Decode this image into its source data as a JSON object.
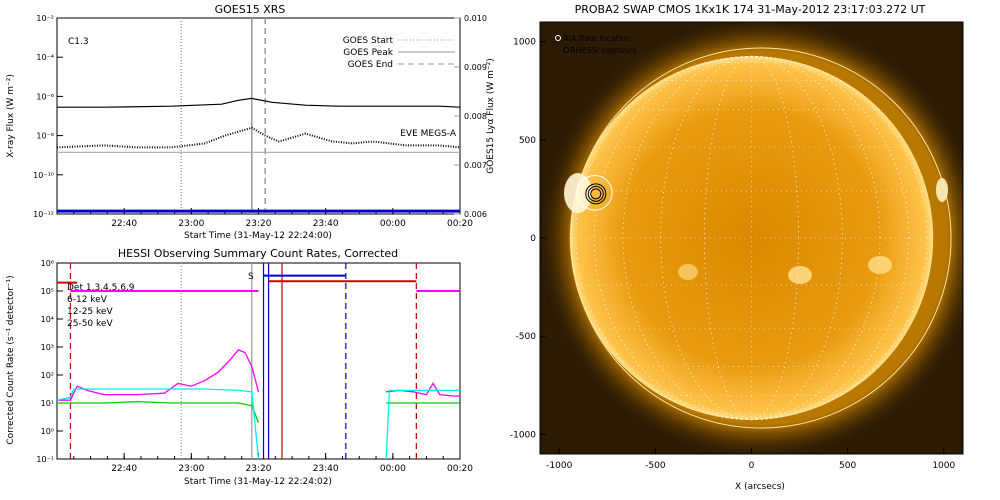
{
  "chart_data": [
    {
      "type": "line",
      "title": "GOES15 XRS",
      "xlabel": "Start Time (31-May-12 22:24:00)",
      "ylabel": "X-ray Flux (W m⁻²)",
      "ylabel_right": "GOES15 Lyα Flux (W m⁻²)",
      "x_ticks": [
        "22:40",
        "23:00",
        "23:20",
        "23:40",
        "00:00",
        "00:20"
      ],
      "x_range_min": [
        -4,
        116
      ],
      "x_tick_min": [
        16,
        36,
        56,
        76,
        96,
        116
      ],
      "y_scale": "log",
      "ylim": [
        1e-12,
        0.01
      ],
      "y_ticks": [
        "10⁻¹²",
        "10⁻¹⁰",
        "10⁻⁸",
        "10⁻⁶",
        "10⁻⁴",
        "10⁻²"
      ],
      "y_tick_exp": [
        -12,
        -10,
        -8,
        -6,
        -4,
        -2
      ],
      "right_ylim": [
        0.006,
        0.01
      ],
      "right_ticks": [
        "0.006",
        "0.007",
        "0.008",
        "0.009",
        "0.010"
      ],
      "right_tick_vals": [
        0.006,
        0.007,
        0.008,
        0.009,
        0.01
      ],
      "class_label": "C1.3",
      "legend": [
        "GOES Start",
        "GOES Peak",
        "GOES End"
      ],
      "eve_label": "EVE MEGS-A",
      "vlines": {
        "start": 33,
        "peak": 54,
        "end": 58
      },
      "series": [
        {
          "name": "long",
          "color": "#000000",
          "x": [
            -4,
            10,
            30,
            45,
            50,
            54,
            60,
            70,
            80,
            90,
            100,
            110,
            116
          ],
          "y_exp": [
            -6.55,
            -6.55,
            -6.5,
            -6.4,
            -6.2,
            -6.1,
            -6.3,
            -6.45,
            -6.5,
            -6.5,
            -6.5,
            -6.5,
            -6.55
          ]
        },
        {
          "name": "short",
          "color": "#000000",
          "x": [
            -4,
            10,
            20,
            30,
            40,
            46,
            50,
            54,
            58,
            62,
            66,
            70,
            74,
            78,
            84,
            90,
            100,
            110,
            116
          ],
          "y_exp": [
            -8.6,
            -8.5,
            -8.6,
            -8.6,
            -8.4,
            -8.0,
            -7.8,
            -7.6,
            -8.0,
            -8.3,
            -8.1,
            -7.9,
            -8.1,
            -8.3,
            -8.4,
            -8.3,
            -8.5,
            -8.5,
            -8.6
          ]
        },
        {
          "name": "lya",
          "color": "#aaaaaa",
          "x": [
            -4,
            116
          ],
          "y_exp": [
            -8.85,
            -8.85
          ]
        },
        {
          "name": "eve",
          "color": "#0000cc",
          "x": [
            -4,
            116
          ],
          "y_exp": [
            -11.85,
            -11.85
          ]
        }
      ]
    },
    {
      "type": "line",
      "title": "HESSI Observing Summary Count Rates, Corrected",
      "xlabel": "Start Time (31-May-12 22:24:02)",
      "ylabel": "Corrected Count Rate (s⁻¹ detector⁻¹)",
      "x_ticks": [
        "22:40",
        "23:00",
        "23:20",
        "23:40",
        "00:00",
        "00:20"
      ],
      "x_range_min": [
        -4,
        116
      ],
      "x_tick_min": [
        16,
        36,
        56,
        76,
        96,
        116
      ],
      "y_scale": "log",
      "ylim": [
        0.1,
        1000000
      ],
      "y_ticks": [
        "10⁻¹",
        "10⁰",
        "10¹",
        "10²",
        "10³",
        "10⁴",
        "10⁵",
        "10⁶"
      ],
      "y_tick_exp": [
        -1,
        0,
        1,
        2,
        3,
        4,
        5,
        6
      ],
      "legend": [
        {
          "label": "Det 1,3,4,5,6,9",
          "color": "#000000"
        },
        {
          "label": "6-12 keV",
          "color": "#ff00ff"
        },
        {
          "label": "12-25 keV",
          "color": "#00cc00"
        },
        {
          "label": "25-50 keV",
          "color": "#00eeee"
        }
      ],
      "s_label": "S",
      "vlines": [
        {
          "x": 0,
          "color": "#cc0000",
          "style": "dash"
        },
        {
          "x": 33,
          "color": "#999999",
          "style": "dot"
        },
        {
          "x": 54,
          "color": "#999999",
          "style": "solid"
        },
        {
          "x": 57.5,
          "color": "#0000cc",
          "style": "solid"
        },
        {
          "x": 59,
          "color": "#0000cc",
          "style": "solid"
        },
        {
          "x": 63,
          "color": "#cc0000",
          "style": "solid"
        },
        {
          "x": 82,
          "color": "#0000cc",
          "style": "dash"
        },
        {
          "x": 103,
          "color": "#cc0000",
          "style": "dash"
        }
      ],
      "series": [
        {
          "name": "6-12 keV",
          "color": "#ff00ff",
          "x": [
            -4,
            0,
            2,
            5,
            10,
            20,
            28,
            32,
            36,
            40,
            44,
            48,
            50,
            52,
            54,
            56
          ],
          "y_exp": [
            1.1,
            1.1,
            1.6,
            1.45,
            1.3,
            1.3,
            1.35,
            1.7,
            1.6,
            1.8,
            2.1,
            2.6,
            2.9,
            2.8,
            2.3,
            1.4
          ]
        },
        {
          "name": "6-12 keV late",
          "color": "#ff00ff",
          "x": [
            94,
            98,
            102,
            106,
            108,
            110,
            114,
            116
          ],
          "y_exp": [
            1.4,
            1.45,
            1.4,
            1.3,
            1.7,
            1.3,
            1.25,
            1.25
          ]
        },
        {
          "name": "12-25 keV",
          "color": "#00cc00",
          "x": [
            -4,
            10,
            20,
            30,
            40,
            50,
            54,
            56
          ],
          "y_exp": [
            1.0,
            1.0,
            1.05,
            1.0,
            1.0,
            1.0,
            0.9,
            0.3
          ]
        },
        {
          "name": "12-25 keV late",
          "color": "#00cc00",
          "x": [
            94,
            100,
            110,
            116
          ],
          "y_exp": [
            1.0,
            1.0,
            1.0,
            1.0
          ]
        },
        {
          "name": "25-50 keV",
          "color": "#00eeee",
          "x": [
            -4,
            0,
            1,
            5,
            20,
            40,
            50,
            54,
            56
          ],
          "y_exp": [
            1.1,
            1.2,
            1.5,
            1.5,
            1.5,
            1.5,
            1.45,
            1.4,
            -1
          ]
        },
        {
          "name": "25-50 keV late",
          "color": "#00eeee",
          "x": [
            94,
            95,
            100,
            116
          ],
          "y_exp": [
            -1,
            1.45,
            1.45,
            1.45
          ]
        },
        {
          "name": "attenuator",
          "color": "#ff00ff",
          "x": [
            0,
            56
          ],
          "y_exp": [
            5.0,
            5.0
          ]
        },
        {
          "name": "attenuator late",
          "color": "#ff00ff",
          "x": [
            103,
            116
          ],
          "y_exp": [
            5.0,
            5.0
          ]
        },
        {
          "name": "flag red",
          "color": "#cc0000",
          "x": [
            -4,
            0,
            0,
            2
          ],
          "y_exp": [
            5.3,
            5.3,
            5.3,
            5.3
          ]
        },
        {
          "name": "flag red mid",
          "color": "#cc0000",
          "x": [
            59,
            103
          ],
          "y_exp": [
            5.35,
            5.35
          ]
        },
        {
          "name": "flag blue",
          "color": "#0000cc",
          "x": [
            57.5,
            82
          ],
          "y_exp": [
            5.55,
            5.55
          ]
        }
      ]
    },
    {
      "type": "heatmap",
      "title": "PROBA2 SWAP CMOS 1Kx1K 174 31-May-2012 23:17:03.272 UT",
      "xlabel": "X (arcsecs)",
      "ylabel": "",
      "xlim": [
        -1100,
        1100
      ],
      "ylim": [
        -1100,
        1100
      ],
      "x_ticks": [
        "-1000",
        "-500",
        "0",
        "500",
        "1000"
      ],
      "x_tick_vals": [
        -1000,
        -500,
        0,
        500,
        1000
      ],
      "y_ticks": [
        "-1000",
        "-500",
        "0",
        "500",
        "1000"
      ],
      "y_tick_vals": [
        -1000,
        -500,
        0,
        500,
        1000
      ],
      "solar_radius": 945,
      "legend": [
        "AIA flare location",
        "RHESSI contours"
      ],
      "flare": {
        "x": -815,
        "y": 230,
        "aia_radius": 90
      },
      "grid": "dotted heliographic grid"
    }
  ]
}
